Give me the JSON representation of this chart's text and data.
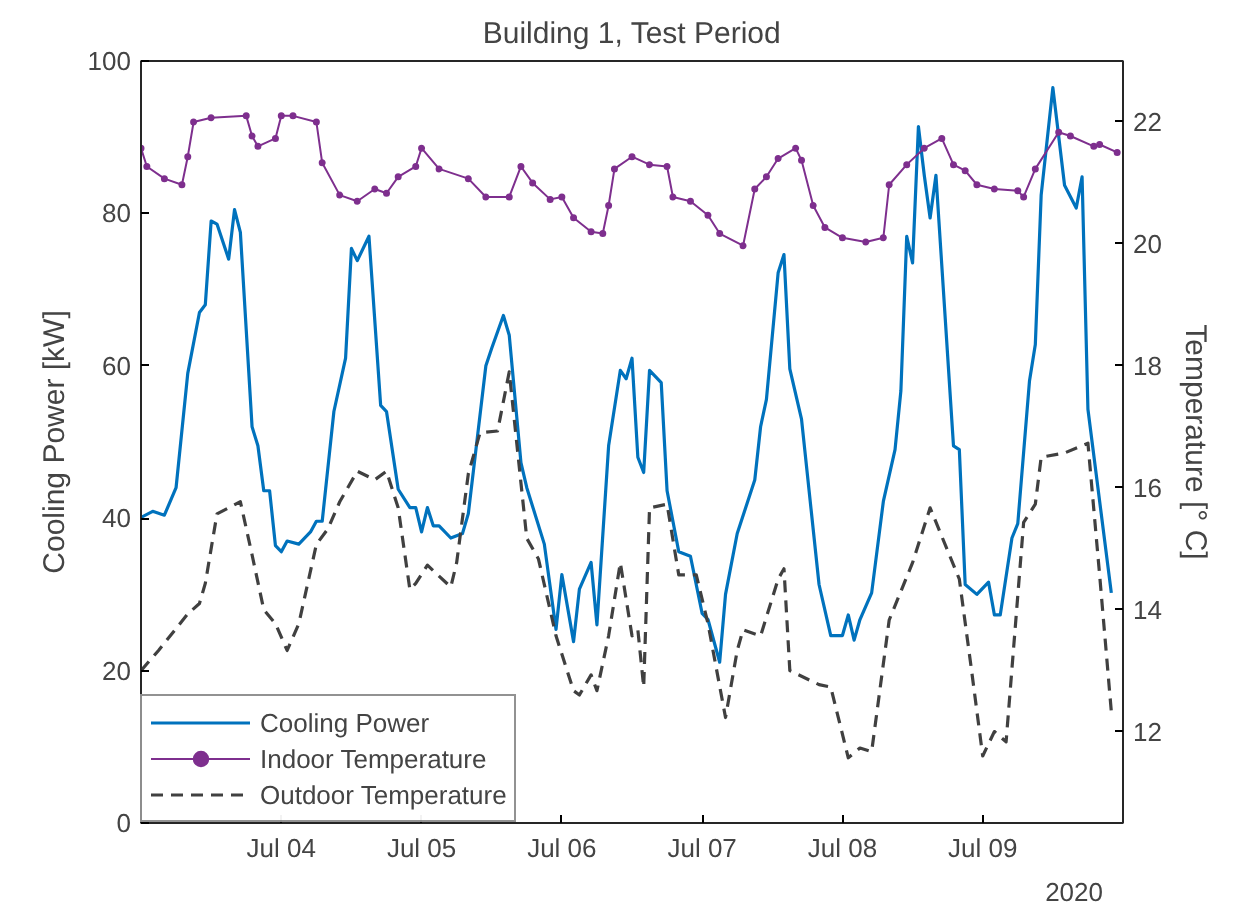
{
  "chart_data": {
    "type": "line",
    "title": "Building 1, Test Period",
    "ylabel": "Cooling Power [kW]",
    "y2label": "Temperature [° C]",
    "annotations": [
      "2020"
    ],
    "xlim": [
      "2020-07-03T00:00",
      "2020-07-10T00:00"
    ],
    "xticks": [
      {
        "value": "2020-07-04",
        "label": "Jul 04"
      },
      {
        "value": "2020-07-05",
        "label": "Jul 05"
      },
      {
        "value": "2020-07-06",
        "label": "Jul 06"
      },
      {
        "value": "2020-07-07",
        "label": "Jul 07"
      },
      {
        "value": "2020-07-08",
        "label": "Jul 08"
      },
      {
        "value": "2020-07-09",
        "label": "Jul 09"
      }
    ],
    "ylim": [
      0,
      100
    ],
    "yticks": [
      0,
      20,
      40,
      60,
      80,
      100
    ],
    "y2lim": [
      10.5,
      23
    ],
    "y2ticks": [
      12,
      14,
      16,
      18,
      20,
      22
    ],
    "grid": false,
    "legend": "bottom left",
    "series": [
      {
        "name": "Cooling Power",
        "color": "#0072bd",
        "marker": "none",
        "line_style": "solid",
        "x": [
          "2020-07-03T00:00",
          "2020-07-03T02:00",
          "2020-07-03T04:00",
          "2020-07-03T06:00",
          "2020-07-03T08:00",
          "2020-07-03T10:00",
          "2020-07-03T11:00",
          "2020-07-03T12:00",
          "2020-07-03T13:00",
          "2020-07-03T15:00",
          "2020-07-03T16:00",
          "2020-07-03T17:00",
          "2020-07-03T19:00",
          "2020-07-03T20:00",
          "2020-07-03T21:00",
          "2020-07-03T22:00",
          "2020-07-03T23:00",
          "2020-07-04T00:00",
          "2020-07-04T01:00",
          "2020-07-04T03:00",
          "2020-07-04T05:00",
          "2020-07-04T06:00",
          "2020-07-04T07:00",
          "2020-07-04T09:00",
          "2020-07-04T11:00",
          "2020-07-04T12:00",
          "2020-07-04T13:00",
          "2020-07-04T15:00",
          "2020-07-04T17:00",
          "2020-07-04T18:00",
          "2020-07-04T20:00",
          "2020-07-04T22:00",
          "2020-07-04T23:00",
          "2020-07-05T00:00",
          "2020-07-05T01:00",
          "2020-07-05T02:00",
          "2020-07-05T03:00",
          "2020-07-05T05:00",
          "2020-07-05T07:00",
          "2020-07-05T08:00",
          "2020-07-05T11:00",
          "2020-07-05T12:00",
          "2020-07-05T14:00",
          "2020-07-05T15:00",
          "2020-07-05T17:00",
          "2020-07-05T18:00",
          "2020-07-05T21:00",
          "2020-07-05T23:00",
          "2020-07-06T00:00",
          "2020-07-06T02:00",
          "2020-07-06T03:00",
          "2020-07-06T05:00",
          "2020-07-06T06:00",
          "2020-07-06T08:00",
          "2020-07-06T10:00",
          "2020-07-06T11:00",
          "2020-07-06T12:00",
          "2020-07-06T13:00",
          "2020-07-06T14:00",
          "2020-07-06T15:00",
          "2020-07-06T17:00",
          "2020-07-06T18:00",
          "2020-07-06T20:00",
          "2020-07-06T22:00",
          "2020-07-07T00:00",
          "2020-07-07T01:00",
          "2020-07-07T03:00",
          "2020-07-07T04:00",
          "2020-07-07T06:00",
          "2020-07-07T09:00",
          "2020-07-07T10:00",
          "2020-07-07T11:00",
          "2020-07-07T13:00",
          "2020-07-07T14:00",
          "2020-07-07T15:00",
          "2020-07-07T17:00",
          "2020-07-07T20:00",
          "2020-07-07T22:00",
          "2020-07-08T00:00",
          "2020-07-08T01:00",
          "2020-07-08T02:00",
          "2020-07-08T03:00",
          "2020-07-08T05:00",
          "2020-07-08T07:00",
          "2020-07-08T09:00",
          "2020-07-08T10:00",
          "2020-07-08T11:00",
          "2020-07-08T12:00",
          "2020-07-08T13:00",
          "2020-07-08T14:00",
          "2020-07-08T15:00",
          "2020-07-08T16:00",
          "2020-07-08T19:00",
          "2020-07-08T20:00",
          "2020-07-08T21:00",
          "2020-07-08T23:00",
          "2020-07-09T01:00",
          "2020-07-09T02:00",
          "2020-07-09T03:00",
          "2020-07-09T05:00",
          "2020-07-09T06:00",
          "2020-07-09T08:00",
          "2020-07-09T09:00",
          "2020-07-09T10:00",
          "2020-07-09T12:00",
          "2020-07-09T14:00",
          "2020-07-09T16:00",
          "2020-07-09T17:00",
          "2020-07-09T18:00",
          "2020-07-09T22:00"
        ],
        "values": [
          40.1,
          40.9,
          40.4,
          44,
          59,
          67,
          68,
          79,
          78.6,
          74,
          80.5,
          77.5,
          52,
          49.5,
          43.6,
          43.6,
          36.4,
          35.6,
          37,
          36.6,
          38.2,
          39.6,
          39.6,
          54,
          61,
          75.4,
          73.8,
          77,
          54.8,
          54,
          43.8,
          41.4,
          41.4,
          38.2,
          41.4,
          39,
          39,
          37.4,
          38,
          40.6,
          60,
          62.3,
          66.6,
          64,
          47.3,
          44,
          36.6,
          25.4,
          32.6,
          23.8,
          30.7,
          34.2,
          26,
          49.5,
          59.4,
          58.3,
          61,
          48,
          46,
          59.4,
          57.8,
          43.6,
          35.6,
          35,
          27.5,
          26.7,
          21.1,
          30,
          38,
          45,
          52,
          55.6,
          72.2,
          74.6,
          59.6,
          53,
          31.3,
          24.6,
          24.6,
          27.3,
          24,
          26.7,
          30.2,
          42.2,
          49,
          56.7,
          77,
          73.5,
          91.4,
          85,
          79.4,
          85,
          49.5,
          49,
          31.3,
          30,
          31.6,
          27.3,
          27.3,
          37.4,
          39.3,
          58,
          62.8,
          82.4,
          96.5,
          83.7,
          80.7,
          84.8,
          54.3,
          30.2
        ]
      },
      {
        "name": "Indoor Temperature",
        "color": "#7e2f8e",
        "axis": "y2",
        "marker": "circle",
        "line_style": "solid",
        "x": [
          "2020-07-03T00:00",
          "2020-07-03T01:00",
          "2020-07-03T04:00",
          "2020-07-03T07:00",
          "2020-07-03T08:00",
          "2020-07-03T09:00",
          "2020-07-03T12:00",
          "2020-07-03T18:00",
          "2020-07-03T19:00",
          "2020-07-03T20:00",
          "2020-07-03T23:00",
          "2020-07-04T00:00",
          "2020-07-04T02:00",
          "2020-07-04T06:00",
          "2020-07-04T07:00",
          "2020-07-04T10:00",
          "2020-07-04T13:00",
          "2020-07-04T16:00",
          "2020-07-04T18:00",
          "2020-07-04T20:00",
          "2020-07-04T23:00",
          "2020-07-05T00:00",
          "2020-07-05T03:00",
          "2020-07-05T08:00",
          "2020-07-05T11:00",
          "2020-07-05T15:00",
          "2020-07-05T17:00",
          "2020-07-05T19:00",
          "2020-07-05T22:00",
          "2020-07-06T00:00",
          "2020-07-06T02:00",
          "2020-07-06T05:00",
          "2020-07-06T07:00",
          "2020-07-06T08:00",
          "2020-07-06T09:00",
          "2020-07-06T12:00",
          "2020-07-06T15:00",
          "2020-07-06T18:00",
          "2020-07-06T19:00",
          "2020-07-06T22:00",
          "2020-07-07T01:00",
          "2020-07-07T03:00",
          "2020-07-07T07:00",
          "2020-07-07T09:00",
          "2020-07-07T11:00",
          "2020-07-07T13:00",
          "2020-07-07T16:00",
          "2020-07-07T17:00",
          "2020-07-07T19:00",
          "2020-07-07T21:00",
          "2020-07-08T00:00",
          "2020-07-08T04:00",
          "2020-07-08T07:00",
          "2020-07-08T08:00",
          "2020-07-08T11:00",
          "2020-07-08T14:00",
          "2020-07-08T17:00",
          "2020-07-08T19:00",
          "2020-07-08T21:00",
          "2020-07-08T23:00",
          "2020-07-09T02:00",
          "2020-07-09T06:00",
          "2020-07-09T07:00",
          "2020-07-09T09:00",
          "2020-07-09T13:00",
          "2020-07-09T15:00",
          "2020-07-09T19:00",
          "2020-07-09T20:00",
          "2020-07-09T23:00"
        ],
        "values": [
          21.57,
          21.27,
          21.07,
          20.97,
          21.43,
          22,
          22.07,
          22.1,
          21.77,
          21.6,
          21.73,
          22.1,
          22.1,
          22,
          21.33,
          20.8,
          20.7,
          20.9,
          20.83,
          21.1,
          21.27,
          21.57,
          21.23,
          21.07,
          20.77,
          20.77,
          21.27,
          21,
          20.73,
          20.77,
          20.43,
          20.2,
          20.17,
          20.63,
          21.23,
          21.43,
          21.3,
          21.27,
          20.77,
          20.7,
          20.47,
          20.17,
          19.97,
          20.9,
          21.1,
          21.4,
          21.57,
          21.37,
          20.63,
          20.27,
          20.1,
          20.03,
          20.1,
          20.97,
          21.3,
          21.57,
          21.73,
          21.3,
          21.2,
          20.97,
          20.9,
          20.87,
          20.77,
          21.23,
          21.83,
          21.77,
          21.6,
          21.63,
          21.5
        ]
      },
      {
        "name": "Outdoor Temperature",
        "color": "#404040",
        "axis": "y2",
        "marker": "none",
        "line_style": "dashed",
        "x": [
          "2020-07-03T00:00",
          "2020-07-03T03:00",
          "2020-07-03T08:00",
          "2020-07-03T10:00",
          "2020-07-03T11:00",
          "2020-07-03T13:00",
          "2020-07-03T15:00",
          "2020-07-03T17:00",
          "2020-07-03T19:00",
          "2020-07-03T21:00",
          "2020-07-03T23:00",
          "2020-07-04T01:00",
          "2020-07-04T03:00",
          "2020-07-04T06:00",
          "2020-07-04T08:00",
          "2020-07-04T10:00",
          "2020-07-04T13:00",
          "2020-07-04T16:00",
          "2020-07-04T18:00",
          "2020-07-04T20:00",
          "2020-07-04T22:00",
          "2020-07-04T23:00",
          "2020-07-05T01:00",
          "2020-07-05T05:00",
          "2020-07-05T06:00",
          "2020-07-05T08:00",
          "2020-07-05T10:00",
          "2020-07-05T13:00",
          "2020-07-05T15:00",
          "2020-07-05T18:00",
          "2020-07-05T20:00",
          "2020-07-05T23:00",
          "2020-07-06T02:00",
          "2020-07-06T03:00",
          "2020-07-06T05:00",
          "2020-07-06T06:00",
          "2020-07-06T08:00",
          "2020-07-06T10:00",
          "2020-07-06T12:00",
          "2020-07-06T13:00",
          "2020-07-06T14:00",
          "2020-07-06T15:00",
          "2020-07-06T18:00",
          "2020-07-06T20:00",
          "2020-07-06T23:00",
          "2020-07-07T01:00",
          "2020-07-07T04:00",
          "2020-07-07T06:00",
          "2020-07-07T07:00",
          "2020-07-07T10:00",
          "2020-07-07T13:00",
          "2020-07-07T14:00",
          "2020-07-07T15:00",
          "2020-07-07T20:00",
          "2020-07-07T22:00",
          "2020-07-08T01:00",
          "2020-07-08T03:00",
          "2020-07-08T05:00",
          "2020-07-08T08:00",
          "2020-07-08T12:00",
          "2020-07-08T15:00",
          "2020-07-08T20:00",
          "2020-07-08T22:00",
          "2020-07-09T00:00",
          "2020-07-09T02:00",
          "2020-07-09T04:00",
          "2020-07-09T07:00",
          "2020-07-09T09:00",
          "2020-07-09T10:00",
          "2020-07-09T14:00",
          "2020-07-09T18:00",
          "2020-07-09T20:00",
          "2020-07-09T22:00"
        ],
        "values": [
          13,
          13.33,
          13.93,
          14.1,
          14.43,
          15.57,
          15.67,
          15.77,
          14.9,
          14,
          13.77,
          13.33,
          13.77,
          15.07,
          15.33,
          15.77,
          16.27,
          16.13,
          16.27,
          15.67,
          14.33,
          14.43,
          14.73,
          14.37,
          14.77,
          16.23,
          16.9,
          16.93,
          17.9,
          15.17,
          14.83,
          13.57,
          12.67,
          12.6,
          12.93,
          12.67,
          13.57,
          14.77,
          13.57,
          13.67,
          12.73,
          15.67,
          15.73,
          14.57,
          14.57,
          13.77,
          12.23,
          13.33,
          13.67,
          13.57,
          14.5,
          14.67,
          13,
          12.77,
          12.73,
          11.57,
          11.73,
          11.67,
          13.83,
          14.77,
          15.67,
          14.5,
          13.07,
          11.6,
          12,
          11.83,
          15.43,
          15.73,
          16.5,
          16.57,
          16.73,
          14.57,
          12.33
        ]
      }
    ]
  }
}
